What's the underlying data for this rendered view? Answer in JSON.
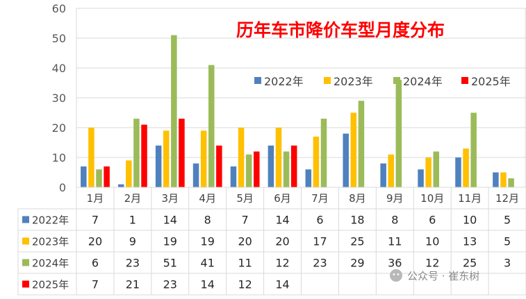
{
  "chart_data": {
    "type": "bar",
    "title": "历年车市降价车型月度分布",
    "categories": [
      "1月",
      "2月",
      "3月",
      "4月",
      "5月",
      "6月",
      "7月",
      "8月",
      "9月",
      "10月",
      "11月",
      "12月"
    ],
    "series": [
      {
        "name": "2022年",
        "color": "#4f81bd",
        "values": [
          7,
          1,
          14,
          8,
          7,
          14,
          6,
          18,
          8,
          6,
          10,
          5
        ]
      },
      {
        "name": "2023年",
        "color": "#ffc000",
        "values": [
          20,
          9,
          19,
          19,
          20,
          20,
          17,
          25,
          11,
          10,
          13,
          5
        ]
      },
      {
        "name": "2024年",
        "color": "#9bbb59",
        "values": [
          6,
          23,
          51,
          41,
          11,
          12,
          23,
          29,
          36,
          12,
          25,
          3
        ]
      },
      {
        "name": "2025年",
        "color": "#ff0000",
        "values": [
          7,
          21,
          23,
          14,
          12,
          14,
          null,
          null,
          null,
          null,
          null,
          null
        ]
      }
    ],
    "ylim": [
      0,
      60
    ],
    "yticks": [
      0,
      10,
      20,
      30,
      40,
      50,
      60
    ],
    "grid": true,
    "legend": "top-right",
    "data_table": true,
    "xlabel": "",
    "ylabel": ""
  },
  "watermark": {
    "text": "公众号 · 崔东树",
    "icon": "wechat-icon"
  }
}
